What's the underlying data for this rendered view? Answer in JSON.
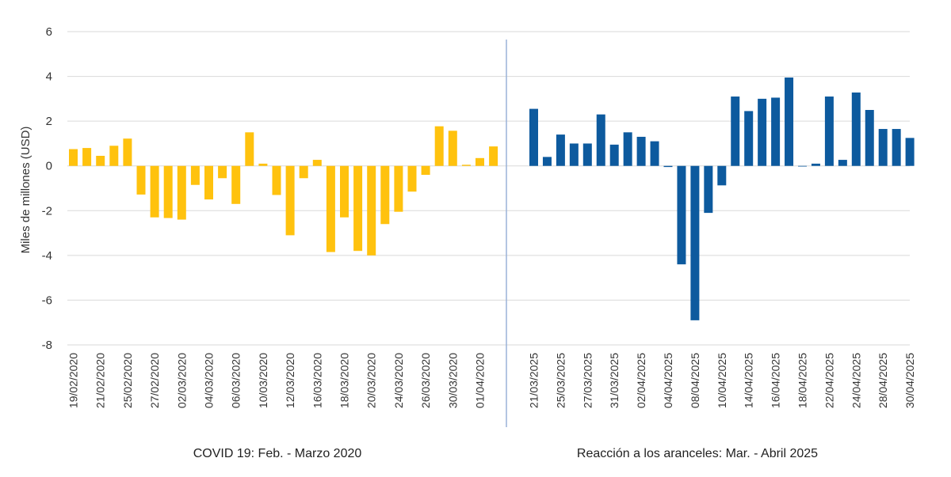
{
  "chart_data": {
    "type": "bar",
    "ylabel": "Miles de millones (USD)",
    "ylim": [
      -8,
      6
    ],
    "yticks": [
      6,
      4,
      2,
      0,
      -2,
      -4,
      -6,
      -8
    ],
    "grid": true,
    "panels": [
      {
        "label": "COVID 19: Feb. - Marzo 2020",
        "color": "#FFC20E",
        "tick_labels": [
          "19/02/2020",
          "21/02/2020",
          "25/02/2020",
          "27/02/2020",
          "02/03/2020",
          "04/03/2020",
          "06/03/2020",
          "10/03/2020",
          "12/03/2020",
          "16/03/2020",
          "18/03/2020",
          "20/03/2020",
          "24/03/2020",
          "26/03/2020",
          "30/03/2020",
          "01/04/2020"
        ],
        "values": [
          0.75,
          0.8,
          0.45,
          0.9,
          1.22,
          -1.28,
          -2.3,
          -2.33,
          -2.4,
          -0.85,
          -1.5,
          -0.55,
          -1.7,
          1.5,
          0.1,
          -1.3,
          -3.1,
          -0.55,
          0.27,
          -3.85,
          -2.3,
          -3.8,
          -4.0,
          -2.6,
          -2.05,
          -1.15,
          -0.4,
          1.77,
          1.57,
          0.05,
          0.35,
          0.87
        ]
      },
      {
        "label": "Reacción a los aranceles: Mar. - Abril 2025",
        "color": "#0D5A9E",
        "tick_labels": [
          "21/03/2025",
          "25/03/2025",
          "27/03/2025",
          "31/03/2025",
          "02/04/2025",
          "04/04/2025",
          "08/04/2025",
          "10/04/2025",
          "14/04/2025",
          "16/04/2025",
          "18/04/2025",
          "22/04/2025",
          "24/04/2025",
          "28/04/2025",
          "30/04/2025"
        ],
        "values": [
          2.55,
          0.4,
          1.4,
          1.0,
          1.0,
          2.3,
          0.95,
          1.5,
          1.3,
          1.1,
          -0.05,
          -4.4,
          -6.9,
          -2.1,
          -0.87,
          3.1,
          2.45,
          3.0,
          3.05,
          3.95,
          0.0,
          0.1,
          3.1,
          0.27,
          3.28,
          2.5,
          1.65,
          1.65,
          1.25
        ]
      }
    ]
  }
}
